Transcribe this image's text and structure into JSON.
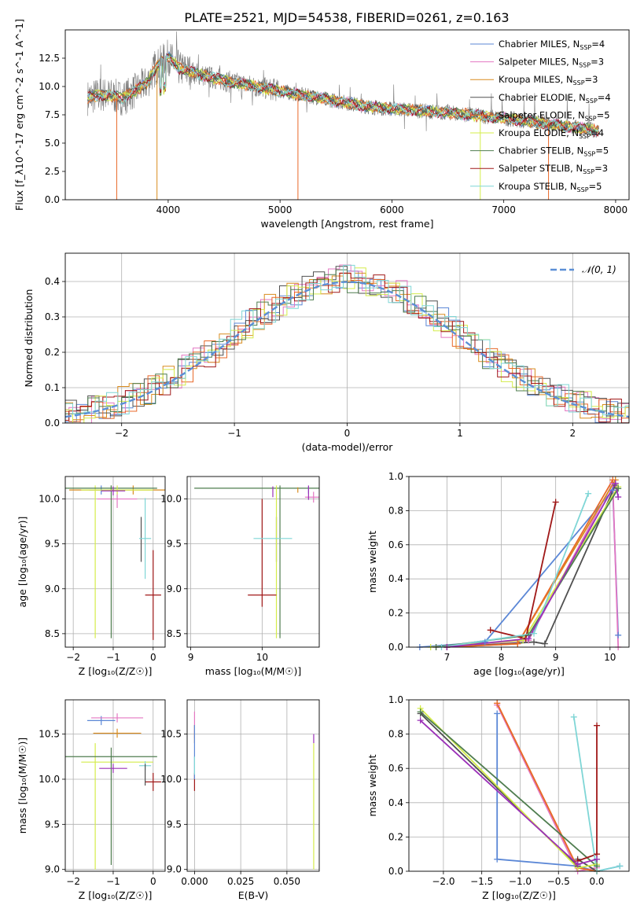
{
  "figure": {
    "title": "PLATE=2521, MJD=54538, FIBERID=0261, z=0.163"
  },
  "colors": {
    "chabrier_miles": "#5b87d6",
    "salpeter_miles": "#e377c2",
    "kroupa_miles": "#d98c1f",
    "chabrier_elodie": "#505050",
    "salpeter_elodie": "#e8692a",
    "kroupa_elodie": "#d4ec4a",
    "chabrier_stelib": "#4f7d4f",
    "salpeter_stelib": "#a01818",
    "kroupa_stelib": "#7fd6d6",
    "purple": "#9b30b8",
    "grid": "#b0b0b0",
    "gauss": "#5b8fd6"
  },
  "chart_data": [
    {
      "id": "spectrum",
      "type": "line",
      "xlabel": "wavelength [Angstrom, rest frame]",
      "ylabel": "Flux [f_λ10^-17 erg cm^-2 s^-1 A^-1]",
      "xlim": [
        3080,
        8120
      ],
      "ylim": [
        0,
        15
      ],
      "xticks": [
        4000,
        5000,
        6000,
        7000,
        8000
      ],
      "yticks": [
        0.0,
        2.5,
        5.0,
        7.5,
        10.0,
        12.5
      ],
      "grid": false,
      "legend": "upper right",
      "legend_entries": [
        {
          "name": "Chabrier MILES, N",
          "sub": "SSP",
          "tail": "=4"
        },
        {
          "name": "Salpeter MILES, N",
          "sub": "SSP",
          "tail": "=3"
        },
        {
          "name": "Kroupa MILES, N",
          "sub": "SSP",
          "tail": "=3"
        },
        {
          "name": "Chabrier ELODIE, N",
          "sub": "SSP",
          "tail": "=4"
        },
        {
          "name": "Salpeter ELODIE, N",
          "sub": "SSP",
          "tail": "=5"
        },
        {
          "name": "Kroupa ELODIE, N",
          "sub": "SSP",
          "tail": "=4"
        },
        {
          "name": "Chabrier STELIB, N",
          "sub": "SSP",
          "tail": "=5"
        },
        {
          "name": "Salpeter STELIB, N",
          "sub": "SSP",
          "tail": "=3"
        },
        {
          "name": "Kroupa STELIB, N",
          "sub": "SSP",
          "tail": "=5"
        }
      ],
      "continuum": [
        [
          3280,
          9.0
        ],
        [
          3400,
          9.3
        ],
        [
          3600,
          9.0
        ],
        [
          3800,
          10.2
        ],
        [
          3900,
          11.8
        ],
        [
          4000,
          12.6
        ],
        [
          4100,
          11.6
        ],
        [
          4300,
          11.0
        ],
        [
          4600,
          10.3
        ],
        [
          5000,
          9.6
        ],
        [
          5400,
          8.9
        ],
        [
          5800,
          8.2
        ],
        [
          6200,
          7.9
        ],
        [
          6600,
          7.6
        ],
        [
          7000,
          7.2
        ],
        [
          7400,
          6.7
        ],
        [
          7850,
          6.1
        ]
      ]
    },
    {
      "id": "residuals",
      "type": "step",
      "xlabel": "(data-model)/error",
      "ylabel": "Normed distribution",
      "xlim": [
        -2.5,
        2.5
      ],
      "ylim": [
        0,
        0.48
      ],
      "xticks": [
        -2,
        -1,
        0,
        1,
        2
      ],
      "yticks": [
        0.0,
        0.1,
        0.2,
        0.3,
        0.4
      ],
      "grid": true,
      "legend": "upper right",
      "legend_entry": "𝒩(0, 1)",
      "gauss": {
        "mu": 0,
        "sigma": 1
      }
    },
    {
      "id": "age_Z",
      "type": "errorbar",
      "xlabel": "Z [log₁₀(Z/Z☉)]",
      "ylabel": "age  [log₁₀(age/yr)]",
      "xlim": [
        -2.2,
        0.3
      ],
      "ylim": [
        8.35,
        10.25
      ],
      "xticks": [
        -2,
        -1,
        0
      ],
      "yticks": [
        8.5,
        9.0,
        9.5,
        10.0
      ],
      "grid": true,
      "points": [
        {
          "c": "chabrier_miles",
          "x": -1.3,
          "xerr": 0.3,
          "y": 10.1,
          "yerr": 0.05
        },
        {
          "c": "salpeter_miles",
          "x": -0.9,
          "xerr": 0.5,
          "y": 10.0,
          "yerr": 0.1
        },
        {
          "c": "kroupa_miles",
          "x": -0.5,
          "xerr": 1.6,
          "y": 10.1,
          "yerr": 0.05
        },
        {
          "c": "chabrier_elodie",
          "x": -0.3,
          "xerr": 0.0,
          "y": 9.55,
          "yerr": 0.25
        },
        {
          "c": "kroupa_elodie",
          "x": -1.45,
          "xerr": 0.0,
          "y": 9.3,
          "yerr": 0.85
        },
        {
          "c": "chabrier_stelib",
          "x": -1.05,
          "xerr": 1.15,
          "y": 10.12,
          "yerr": 0.03
        },
        {
          "c": "chabrier_stelib",
          "x": -1.05,
          "xerr": 0.0,
          "y": 9.3,
          "yerr": 0.85
        },
        {
          "c": "salpeter_stelib",
          "x": 0.0,
          "xerr": 0.2,
          "y": 8.93,
          "yerr": 0.5
        },
        {
          "c": "kroupa_stelib",
          "x": -0.2,
          "xerr": 0.15,
          "y": 9.56,
          "yerr": 0.45
        },
        {
          "c": "kroupa_elodie",
          "x": -0.9,
          "xerr": 0.9,
          "y": 10.1,
          "yerr": 0.05
        },
        {
          "c": "purple",
          "x": -1.0,
          "xerr": 0.3,
          "y": 10.09,
          "yerr": 0.05
        }
      ]
    },
    {
      "id": "age_mass",
      "type": "errorbar",
      "xlabel": "mass [log₁₀(M/M☉)]",
      "ylabel": "",
      "xlim": [
        8.95,
        10.8
      ],
      "ylim": [
        8.35,
        10.25
      ],
      "xticks": [
        9,
        10
      ],
      "yticks": [
        8.5,
        9.0,
        9.5,
        10.0
      ],
      "grid": true,
      "points": [
        {
          "c": "chabrier_stelib",
          "x": 9.95,
          "xerr": 0.9,
          "y": 10.12,
          "yerr": 0.0
        },
        {
          "c": "chabrier_elodie",
          "x": 10.2,
          "xerr": 0.0,
          "y": 9.55,
          "yerr": 0.25
        },
        {
          "c": "kroupa_elodie",
          "x": 10.2,
          "xerr": 0.0,
          "y": 9.3,
          "yerr": 0.85
        },
        {
          "c": "chabrier_stelib",
          "x": 10.25,
          "xerr": 0.0,
          "y": 9.3,
          "yerr": 0.85
        },
        {
          "c": "salpeter_stelib",
          "x": 10.0,
          "xerr": 0.2,
          "y": 8.93,
          "yerr": 0.0
        },
        {
          "c": "salpeter_stelib",
          "x": 10.0,
          "xerr": 0.0,
          "y": 9.4,
          "yerr": 0.6
        },
        {
          "c": "kroupa_stelib",
          "x": 10.15,
          "xerr": 0.27,
          "y": 9.56,
          "yerr": 0.0
        },
        {
          "c": "salpeter_miles",
          "x": 10.72,
          "xerr": 0.12,
          "y": 10.02,
          "yerr": 0.06
        },
        {
          "c": "chabrier_miles",
          "x": 10.65,
          "xerr": 0.0,
          "y": 10.1,
          "yerr": 0.04
        },
        {
          "c": "purple",
          "x": 10.15,
          "xerr": 0.0,
          "y": 10.08,
          "yerr": 0.06
        },
        {
          "c": "kroupa_miles",
          "x": 10.5,
          "xerr": 0.0,
          "y": 10.1,
          "yerr": 0.03
        },
        {
          "c": "purple",
          "x": 10.65,
          "xerr": 0.0,
          "y": 10.07,
          "yerr": 0.08
        }
      ]
    },
    {
      "id": "weight_age",
      "type": "line",
      "xlabel": "age  [log₁₀(age/yr)]",
      "ylabel": "mass weight",
      "xlim": [
        6.3,
        10.35
      ],
      "ylim": [
        0,
        1.0
      ],
      "xticks": [
        7,
        8,
        9,
        10
      ],
      "yticks": [
        0.0,
        0.2,
        0.4,
        0.6,
        0.8,
        1.0
      ],
      "grid": true,
      "series": [
        {
          "c": "chabrier_miles",
          "x": [
            6.5,
            7.7,
            10.05,
            10.15
          ],
          "y": [
            0.0,
            0.03,
            0.92,
            0.07
          ]
        },
        {
          "c": "salpeter_miles",
          "x": [
            6.8,
            8.5,
            10.05,
            10.15
          ],
          "y": [
            0.0,
            0.04,
            0.96,
            0.0
          ]
        },
        {
          "c": "kroupa_miles",
          "x": [
            7.0,
            8.3,
            10.1
          ],
          "y": [
            0.0,
            0.02,
            0.98
          ]
        },
        {
          "c": "chabrier_elodie",
          "x": [
            7.0,
            8.6,
            8.8,
            10.1
          ],
          "y": [
            0.0,
            0.03,
            0.02,
            0.95
          ]
        },
        {
          "c": "salpeter_elodie",
          "x": [
            7.0,
            8.3,
            10.05
          ],
          "y": [
            0.0,
            0.02,
            0.98
          ]
        },
        {
          "c": "kroupa_elodie",
          "x": [
            6.7,
            8.4,
            10.15
          ],
          "y": [
            0.0,
            0.04,
            0.94
          ]
        },
        {
          "c": "chabrier_stelib",
          "x": [
            6.8,
            8.5,
            10.15
          ],
          "y": [
            0.0,
            0.07,
            0.93
          ]
        },
        {
          "c": "salpeter_stelib",
          "x": [
            7.8,
            8.45,
            9.0
          ],
          "y": [
            0.1,
            0.05,
            0.85
          ]
        },
        {
          "c": "kroupa_stelib",
          "x": [
            6.9,
            8.6,
            9.6
          ],
          "y": [
            0.0,
            0.08,
            0.9
          ]
        },
        {
          "c": "purple",
          "x": [
            7.0,
            8.5,
            10.1,
            10.15
          ],
          "y": [
            0.0,
            0.05,
            0.96,
            0.88
          ]
        }
      ]
    },
    {
      "id": "mass_Z",
      "type": "errorbar",
      "xlabel": "Z [log₁₀(Z/Z☉)]",
      "ylabel": "mass [log₁₀(M/M☉)]",
      "xlim": [
        -2.2,
        0.3
      ],
      "ylim": [
        8.98,
        10.88
      ],
      "xticks": [
        -2,
        -1,
        0
      ],
      "yticks": [
        9.0,
        9.5,
        10.0,
        10.5
      ],
      "grid": true,
      "points": [
        {
          "c": "chabrier_miles",
          "x": -1.3,
          "xerr": 0.35,
          "y": 10.65,
          "yerr": 0.05
        },
        {
          "c": "salpeter_miles",
          "x": -0.9,
          "xerr": 0.65,
          "y": 10.68,
          "yerr": 0.05
        },
        {
          "c": "kroupa_miles",
          "x": -0.9,
          "xerr": 0.6,
          "y": 10.51,
          "yerr": 0.05
        },
        {
          "c": "kroupa_elodie",
          "x": -1.45,
          "xerr": 0.0,
          "y": 9.7,
          "yerr": 0.7
        },
        {
          "c": "kroupa_elodie",
          "x": -0.9,
          "xerr": 0.9,
          "y": 10.19,
          "yerr": 0.0
        },
        {
          "c": "chabrier_stelib",
          "x": -1.05,
          "xerr": 1.15,
          "y": 10.25,
          "yerr": 0.0
        },
        {
          "c": "chabrier_stelib",
          "x": -1.05,
          "xerr": 0.0,
          "y": 9.7,
          "yerr": 0.65
        },
        {
          "c": "purple",
          "x": -1.0,
          "xerr": 0.35,
          "y": 10.12,
          "yerr": 0.05
        },
        {
          "c": "salpeter_stelib",
          "x": 0.0,
          "xerr": 0.2,
          "y": 9.97,
          "yerr": 0.1
        },
        {
          "c": "kroupa_stelib",
          "x": -0.2,
          "xerr": 0.15,
          "y": 10.15,
          "yerr": 0.05
        },
        {
          "c": "chabrier_elodie",
          "x": -0.2,
          "xerr": 0.0,
          "y": 10.05,
          "yerr": 0.12
        }
      ]
    },
    {
      "id": "mass_ebv",
      "type": "errorbar",
      "xlabel": "E(B-V)",
      "ylabel": "",
      "xlim": [
        -0.004,
        0.0675
      ],
      "ylim": [
        8.98,
        10.88
      ],
      "xticks": [
        0.0,
        0.025,
        0.05
      ],
      "xticklabels": [
        "0.000",
        "0.025",
        "0.050"
      ],
      "yticks": [
        9.0,
        9.5,
        10.0,
        10.5
      ],
      "grid": true,
      "points": [
        {
          "c": "salpeter_miles",
          "x": 0.0,
          "xerr": 0.0,
          "y": 10.6,
          "yerr": 0.15
        },
        {
          "c": "salpeter_stelib",
          "x": 0.0,
          "xerr": 0.0,
          "y": 9.97,
          "yerr": 0.1
        },
        {
          "c": "kroupa_miles",
          "x": 0.0,
          "xerr": 0.0,
          "y": 10.5,
          "yerr": 0.1
        },
        {
          "c": "chabrier_miles",
          "x": 0.0,
          "xerr": 0.0,
          "y": 10.3,
          "yerr": 0.3
        },
        {
          "c": "kroupa_stelib",
          "x": 0.0,
          "xerr": 0.0,
          "y": 10.15,
          "yerr": 0.1
        },
        {
          "c": "kroupa_elodie",
          "x": 0.0645,
          "xerr": 0.0,
          "y": 9.7,
          "yerr": 0.7
        },
        {
          "c": "purple",
          "x": 0.0645,
          "xerr": 0.0,
          "y": 10.45,
          "yerr": 0.05
        }
      ]
    },
    {
      "id": "weight_Z",
      "type": "line",
      "xlabel": "Z [log₁₀(Z/Z☉)]",
      "ylabel": "mass weight",
      "xlim": [
        -2.45,
        0.42
      ],
      "ylim": [
        0,
        1.0
      ],
      "xticks": [
        -2.0,
        -1.5,
        -1.0,
        -0.5,
        0.0
      ],
      "xticklabels": [
        "−2.0",
        "−1.5",
        "−1.0",
        "−0.5",
        "0.0"
      ],
      "yticks": [
        0.0,
        0.2,
        0.4,
        0.6,
        0.8,
        1.0
      ],
      "grid": true,
      "series": [
        {
          "c": "chabrier_miles",
          "x": [
            -1.3,
            -1.3,
            -0.25,
            0.0,
            0.3
          ],
          "y": [
            0.92,
            0.07,
            0.03,
            0.0,
            0.03
          ]
        },
        {
          "c": "salpeter_miles",
          "x": [
            -1.3,
            -0.25,
            0.0
          ],
          "y": [
            0.97,
            0.0,
            0.02
          ]
        },
        {
          "c": "kroupa_miles",
          "x": [
            -1.3,
            -0.25,
            0.0
          ],
          "y": [
            0.98,
            0.02,
            0.0
          ]
        },
        {
          "c": "chabrier_elodie",
          "x": [
            -2.3,
            -0.25,
            -0.25,
            0.0
          ],
          "y": [
            0.92,
            0.03,
            0.07,
            0.0
          ]
        },
        {
          "c": "salpeter_elodie",
          "x": [
            -1.3,
            -0.25,
            0.0
          ],
          "y": [
            0.98,
            0.02,
            0.0
          ]
        },
        {
          "c": "kroupa_elodie",
          "x": [
            -2.3,
            -0.25,
            0.0
          ],
          "y": [
            0.95,
            0.02,
            0.04
          ]
        },
        {
          "c": "chabrier_stelib",
          "x": [
            -2.3,
            0.0,
            0.0
          ],
          "y": [
            0.93,
            0.03,
            0.07
          ]
        },
        {
          "c": "salpeter_stelib",
          "x": [
            -0.25,
            0.0,
            0.0
          ],
          "y": [
            0.06,
            0.1,
            0.85
          ]
        },
        {
          "c": "kroupa_stelib",
          "x": [
            -0.3,
            0.0,
            0.3
          ],
          "y": [
            0.9,
            0.0,
            0.03
          ]
        },
        {
          "c": "purple",
          "x": [
            -2.3,
            -0.25,
            0.0
          ],
          "y": [
            0.88,
            0.04,
            0.07
          ]
        }
      ]
    }
  ]
}
